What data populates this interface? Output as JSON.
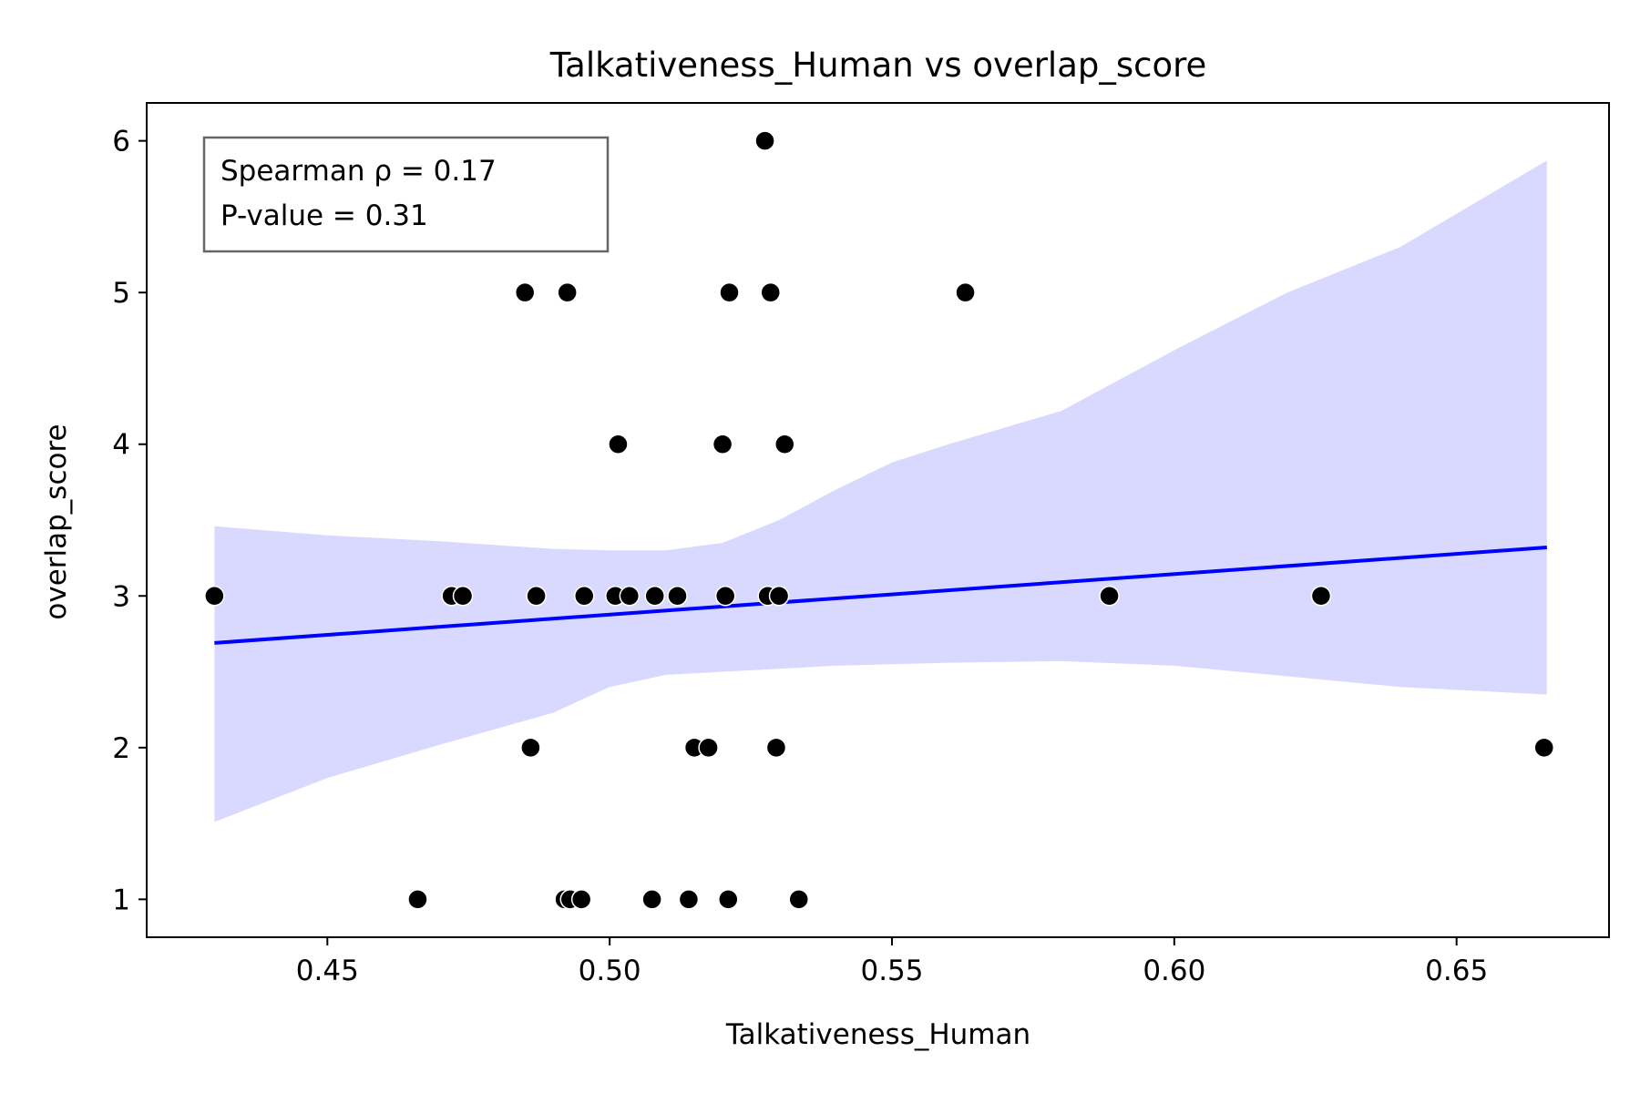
{
  "chart_data": {
    "type": "scatter",
    "title": "Talkativeness_Human vs overlap_score",
    "xlabel": "Talkativeness_Human",
    "ylabel": "overlap_score",
    "xlim": [
      0.418,
      0.677
    ],
    "ylim": [
      0.75,
      6.25
    ],
    "x_ticks": [
      0.45,
      0.5,
      0.55,
      0.6,
      0.65
    ],
    "x_tick_labels": [
      "0.45",
      "0.50",
      "0.55",
      "0.60",
      "0.65"
    ],
    "y_ticks": [
      1,
      2,
      3,
      4,
      5,
      6
    ],
    "y_tick_labels": [
      "1",
      "2",
      "3",
      "4",
      "5",
      "6"
    ],
    "grid": false,
    "annotation": {
      "lines": [
        "Spearman ρ = 0.17",
        "P-value = 0.31"
      ],
      "placement": "top-left"
    },
    "colors": {
      "points": "#000000",
      "point_edge": "#ffffff",
      "regression_line": "#0000ff",
      "confidence_band": "#d9d9ff"
    },
    "points": [
      {
        "x": 0.43,
        "y": 3
      },
      {
        "x": 0.466,
        "y": 1
      },
      {
        "x": 0.472,
        "y": 3
      },
      {
        "x": 0.474,
        "y": 3
      },
      {
        "x": 0.485,
        "y": 5
      },
      {
        "x": 0.486,
        "y": 2
      },
      {
        "x": 0.487,
        "y": 3
      },
      {
        "x": 0.492,
        "y": 1
      },
      {
        "x": 0.493,
        "y": 1
      },
      {
        "x": 0.4925,
        "y": 5
      },
      {
        "x": 0.495,
        "y": 1
      },
      {
        "x": 0.4955,
        "y": 3
      },
      {
        "x": 0.501,
        "y": 3
      },
      {
        "x": 0.5015,
        "y": 4
      },
      {
        "x": 0.5035,
        "y": 3
      },
      {
        "x": 0.5075,
        "y": 1
      },
      {
        "x": 0.508,
        "y": 3
      },
      {
        "x": 0.512,
        "y": 3
      },
      {
        "x": 0.514,
        "y": 1
      },
      {
        "x": 0.515,
        "y": 2
      },
      {
        "x": 0.5175,
        "y": 2
      },
      {
        "x": 0.52,
        "y": 4
      },
      {
        "x": 0.5205,
        "y": 3
      },
      {
        "x": 0.521,
        "y": 1
      },
      {
        "x": 0.5212,
        "y": 5
      },
      {
        "x": 0.5275,
        "y": 6
      },
      {
        "x": 0.528,
        "y": 3
      },
      {
        "x": 0.5285,
        "y": 5
      },
      {
        "x": 0.5295,
        "y": 2
      },
      {
        "x": 0.53,
        "y": 3
      },
      {
        "x": 0.531,
        "y": 4
      },
      {
        "x": 0.5335,
        "y": 1
      },
      {
        "x": 0.563,
        "y": 5
      },
      {
        "x": 0.5885,
        "y": 3
      },
      {
        "x": 0.626,
        "y": 3
      },
      {
        "x": 0.6655,
        "y": 2
      }
    ],
    "regression_line": {
      "x": [
        0.43,
        0.666
      ],
      "y": [
        2.69,
        3.32
      ]
    },
    "confidence_band": {
      "x": [
        0.43,
        0.45,
        0.47,
        0.49,
        0.5,
        0.51,
        0.52,
        0.53,
        0.54,
        0.55,
        0.56,
        0.58,
        0.6,
        0.62,
        0.64,
        0.666
      ],
      "upper": [
        3.46,
        3.4,
        3.36,
        3.31,
        3.3,
        3.3,
        3.35,
        3.5,
        3.7,
        3.88,
        4.0,
        4.22,
        4.62,
        5.0,
        5.3,
        5.87
      ],
      "lower": [
        1.51,
        1.8,
        2.02,
        2.23,
        2.4,
        2.48,
        2.5,
        2.52,
        2.54,
        2.55,
        2.56,
        2.57,
        2.54,
        2.47,
        2.4,
        2.35
      ]
    }
  }
}
